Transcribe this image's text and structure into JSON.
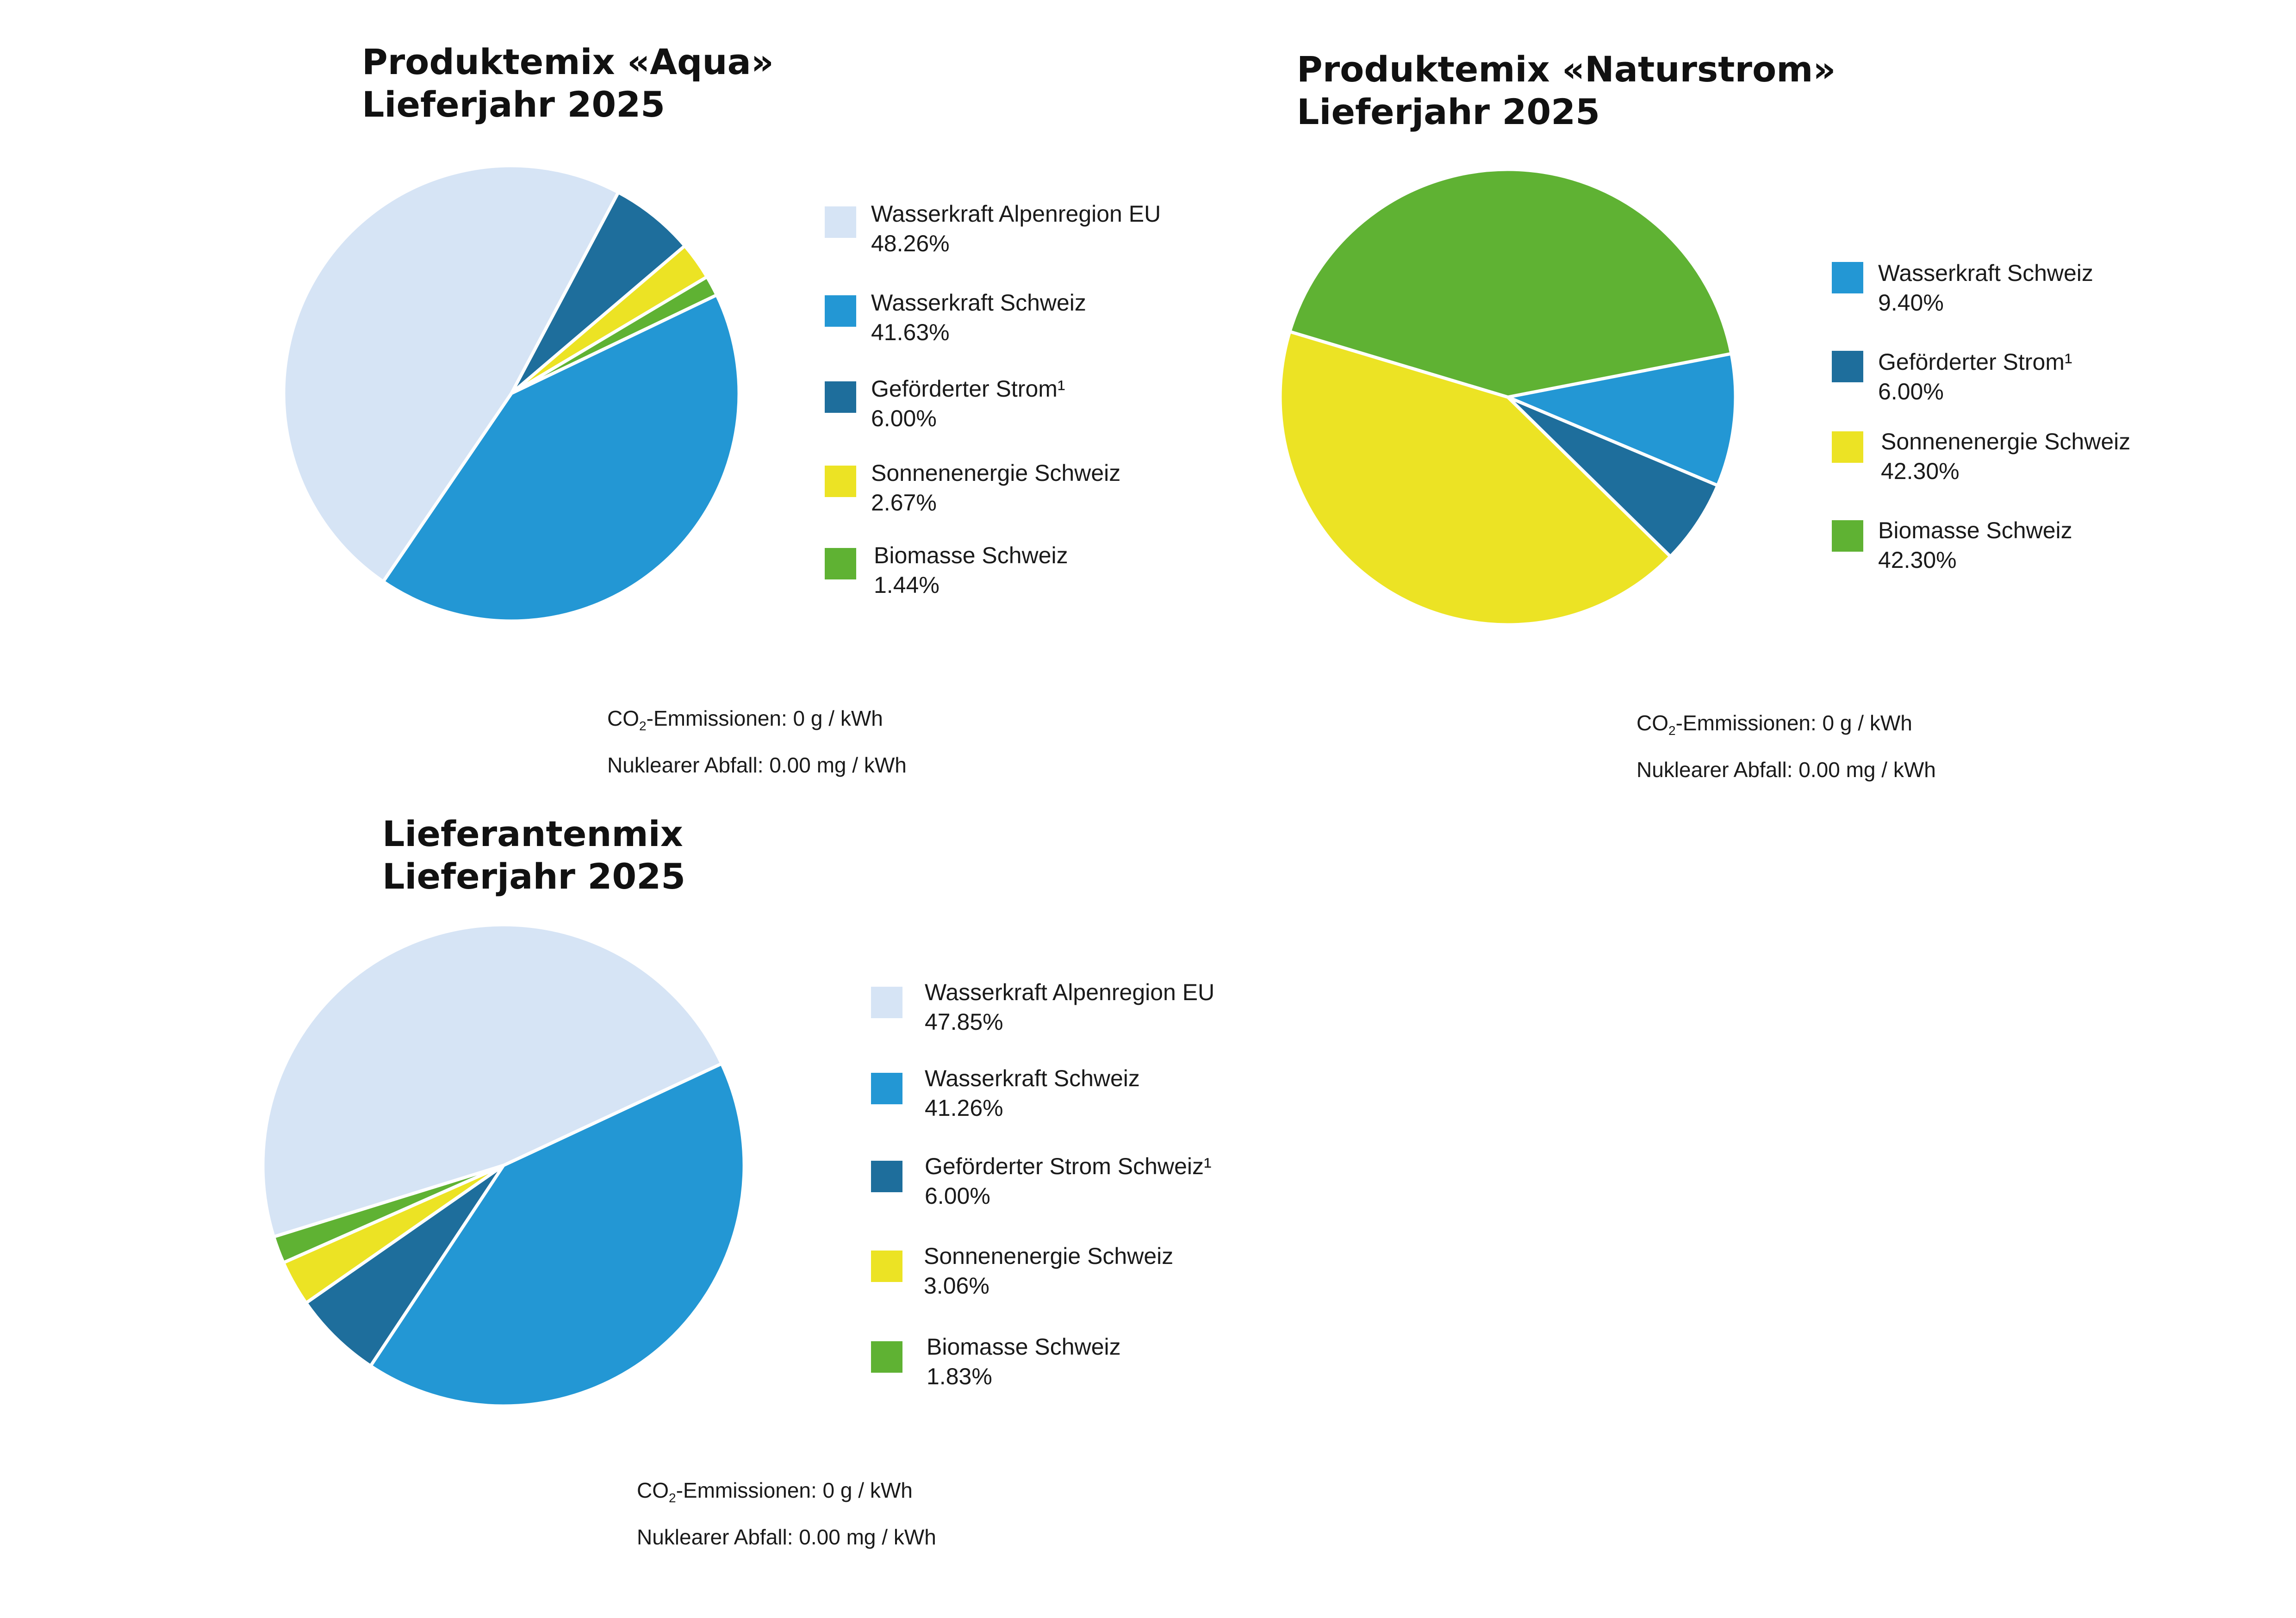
{
  "colors": {
    "wasserkraft_eu": "#d6e4f5",
    "wasserkraft_ch": "#2397d4",
    "gefoerdert": "#1e6e9c",
    "sonne": "#ece324",
    "biomasse": "#5fb233"
  },
  "chart_data": [
    {
      "type": "pie",
      "title_line1": "Produktemix «Aqua»",
      "title_line2": "Lieferjahr 2025",
      "slices": [
        {
          "label": "Wasserkraft Alpenregion EU",
          "value": 48.26,
          "value_label": "48.26%",
          "color": "#d6e4f5"
        },
        {
          "label": "Wasserkraft Schweiz",
          "value": 41.63,
          "value_label": "41.63%",
          "color": "#2397d4"
        },
        {
          "label": "Geförderter Strom¹",
          "value": 6.0,
          "value_label": "6.00%",
          "color": "#1e6e9c"
        },
        {
          "label": "Sonnenenergie Schweiz",
          "value": 2.67,
          "value_label": "2.67%",
          "color": "#ece324"
        },
        {
          "label": "Biomasse Schweiz",
          "value": 1.44,
          "value_label": "1.44%",
          "color": "#5fb233"
        }
      ],
      "notes": {
        "co2_prefix": "CO",
        "co2_sub": "2",
        "co2_suffix": "-Emmissionen: 0 g / kWh",
        "waste": "Nuklearer Abfall: 0.00 mg / kWh"
      }
    },
    {
      "type": "pie",
      "title_line1": "Produktemix «Naturstrom»",
      "title_line2": "Lieferjahr 2025",
      "slices": [
        {
          "label": "Wasserkraft Schweiz",
          "value": 9.4,
          "value_label": "9.40%",
          "color": "#2397d4"
        },
        {
          "label": "Geförderter Strom¹",
          "value": 6.0,
          "value_label": "6.00%",
          "color": "#1e6e9c"
        },
        {
          "label": "Sonnenenergie Schweiz",
          "value": 42.3,
          "value_label": "42.30%",
          "color": "#ece324"
        },
        {
          "label": "Biomasse Schweiz",
          "value": 42.3,
          "value_label": "42.30%",
          "color": "#5fb233"
        }
      ],
      "notes": {
        "co2_prefix": "CO",
        "co2_sub": "2",
        "co2_suffix": "-Emmissionen: 0 g / kWh",
        "waste": "Nuklearer Abfall: 0.00 mg / kWh"
      }
    },
    {
      "type": "pie",
      "title_line1": "Lieferantenmix",
      "title_line2": "Lieferjahr 2025",
      "slices": [
        {
          "label": "Wasserkraft Alpenregion EU",
          "value": 47.85,
          "value_label": "47.85%",
          "color": "#d6e4f5"
        },
        {
          "label": "Wasserkraft Schweiz",
          "value": 41.26,
          "value_label": "41.26%",
          "color": "#2397d4"
        },
        {
          "label": "Geförderter Strom Schweiz¹",
          "value": 6.0,
          "value_label": "6.00%",
          "color": "#1e6e9c"
        },
        {
          "label": "Sonnenenergie Schweiz",
          "value": 3.06,
          "value_label": "3.06%",
          "color": "#ece324"
        },
        {
          "label": "Biomasse Schweiz",
          "value": 1.83,
          "value_label": "1.83%",
          "color": "#5fb233"
        }
      ],
      "notes": {
        "co2_prefix": "CO",
        "co2_sub": "2",
        "co2_suffix": "-Emmissionen: 0 g / kWh",
        "waste": "Nuklearer Abfall: 0.00 mg / kWh"
      }
    }
  ]
}
